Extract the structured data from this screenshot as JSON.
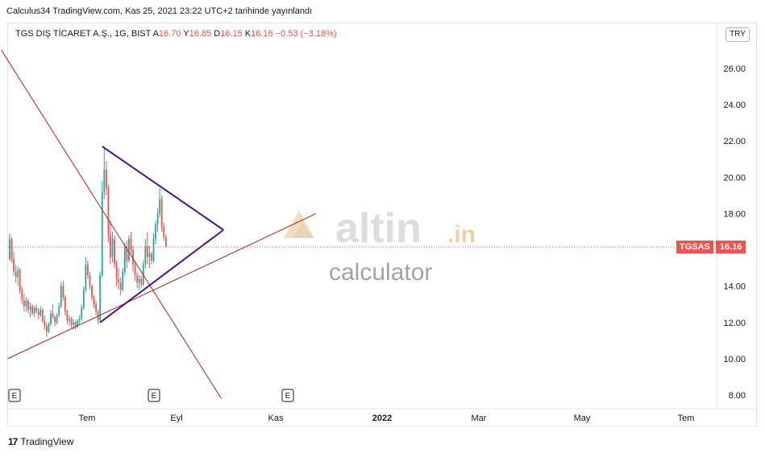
{
  "header": {
    "published": "Calculus34 TradingView.com, Kas 25, 2021 23:22 UTC+2 tarihinde yayınlandı"
  },
  "legend": {
    "symbol": "TGS DIŞ TİCARET A.Ş., 1G, BIST",
    "o_label": "A",
    "o_value": "16.70",
    "h_label": "Y",
    "h_value": "16.85",
    "l_label": "D",
    "l_value": "16.15",
    "c_label": "K",
    "c_value": "16.16",
    "change": "−0.53 (−3.18%)"
  },
  "currency_button": "TRY",
  "price_tag": {
    "symbol": "TGSAS",
    "price": "16.16"
  },
  "watermark": {
    "brand": "altin",
    "tld": ".in",
    "sub": "calculator"
  },
  "footer": {
    "logo": "17",
    "name": "TradingView"
  },
  "colors": {
    "up": "#26a69a",
    "down": "#ef5350",
    "trend_red": "#b22222",
    "triangle": "#4a148c"
  },
  "chart_data": {
    "type": "candlestick",
    "y_ticks": [
      "8.00",
      "10.00",
      "12.00",
      "14.00",
      "16.00",
      "18.00",
      "20.00",
      "22.00",
      "24.00",
      "26.00"
    ],
    "ylim": [
      7.5,
      27
    ],
    "x_ticks": [
      "Tem",
      "Eyl",
      "Kas",
      "2022",
      "Mar",
      "May",
      "Tem"
    ],
    "event_markers": [
      "E",
      "E",
      "E"
    ],
    "last_price": 16.16,
    "series": [
      {
        "name": "TGSAS",
        "values": [
          [
            15.5,
            16.9,
            15.4,
            16.6
          ],
          [
            16.6,
            16.7,
            15.3,
            15.5
          ],
          [
            15.5,
            15.9,
            14.6,
            14.8
          ],
          [
            14.8,
            15.2,
            14.2,
            14.5
          ],
          [
            14.5,
            15.1,
            14.0,
            14.9
          ],
          [
            14.9,
            15.0,
            13.6,
            13.8
          ],
          [
            13.8,
            14.0,
            13.0,
            13.2
          ],
          [
            13.2,
            13.6,
            12.6,
            12.9
          ],
          [
            12.9,
            13.4,
            12.6,
            13.2
          ],
          [
            13.2,
            13.3,
            12.5,
            12.7
          ],
          [
            12.7,
            13.1,
            12.3,
            12.9
          ],
          [
            12.9,
            13.0,
            12.4,
            12.5
          ],
          [
            12.5,
            12.9,
            12.3,
            12.8
          ],
          [
            12.8,
            13.0,
            12.5,
            12.6
          ],
          [
            12.6,
            12.8,
            12.2,
            12.4
          ],
          [
            12.4,
            12.9,
            12.3,
            12.7
          ],
          [
            12.7,
            12.8,
            12.0,
            12.1
          ],
          [
            12.1,
            12.4,
            11.6,
            11.8
          ],
          [
            11.8,
            12.0,
            11.2,
            11.5
          ],
          [
            11.5,
            12.0,
            11.4,
            11.9
          ],
          [
            11.9,
            12.7,
            11.8,
            12.5
          ],
          [
            12.5,
            13.0,
            12.2,
            12.3
          ],
          [
            12.3,
            12.4,
            11.8,
            12.0
          ],
          [
            12.0,
            12.5,
            11.9,
            12.4
          ],
          [
            12.4,
            13.1,
            12.3,
            12.9
          ],
          [
            12.9,
            14.2,
            12.8,
            14.0
          ],
          [
            14.0,
            14.3,
            13.2,
            13.4
          ],
          [
            13.4,
            13.5,
            12.4,
            12.6
          ],
          [
            12.6,
            12.7,
            11.9,
            12.1
          ],
          [
            12.1,
            12.4,
            11.8,
            12.2
          ],
          [
            12.2,
            12.3,
            11.7,
            11.9
          ],
          [
            11.9,
            12.2,
            11.6,
            12.0
          ],
          [
            12.0,
            12.1,
            11.6,
            11.8
          ],
          [
            11.8,
            12.2,
            11.7,
            12.1
          ],
          [
            12.1,
            12.4,
            11.9,
            12.2
          ],
          [
            12.2,
            13.0,
            12.1,
            12.8
          ],
          [
            12.8,
            14.0,
            12.7,
            13.8
          ],
          [
            13.8,
            15.6,
            13.7,
            15.2
          ],
          [
            15.2,
            15.4,
            14.4,
            14.6
          ],
          [
            14.6,
            14.8,
            13.8,
            14.0
          ],
          [
            14.0,
            14.1,
            13.2,
            13.4
          ],
          [
            13.4,
            13.5,
            12.8,
            13.0
          ],
          [
            13.0,
            13.2,
            12.4,
            12.6
          ],
          [
            12.6,
            12.7,
            11.9,
            12.1
          ],
          [
            12.1,
            14.8,
            12.0,
            14.6
          ],
          [
            14.6,
            19.8,
            14.5,
            19.2
          ],
          [
            19.2,
            21.6,
            18.8,
            20.4
          ],
          [
            20.4,
            20.9,
            19.0,
            19.4
          ],
          [
            19.4,
            19.6,
            16.4,
            16.8
          ],
          [
            16.8,
            17.6,
            15.2,
            15.6
          ],
          [
            15.6,
            17.0,
            15.3,
            16.6
          ],
          [
            16.6,
            16.8,
            15.0,
            15.2
          ],
          [
            15.2,
            15.4,
            14.0,
            14.4
          ],
          [
            14.4,
            15.0,
            13.8,
            14.2
          ],
          [
            14.2,
            14.5,
            13.5,
            13.8
          ],
          [
            13.8,
            15.0,
            13.7,
            14.8
          ],
          [
            14.8,
            16.4,
            14.6,
            16.2
          ],
          [
            16.2,
            16.5,
            15.0,
            15.4
          ],
          [
            15.4,
            16.8,
            15.3,
            16.6
          ],
          [
            16.6,
            17.0,
            15.8,
            16.0
          ],
          [
            16.0,
            16.2,
            14.8,
            15.2
          ],
          [
            15.2,
            15.4,
            14.3,
            14.6
          ],
          [
            14.6,
            14.8,
            13.9,
            14.2
          ],
          [
            14.2,
            14.6,
            13.8,
            14.4
          ],
          [
            14.4,
            14.6,
            13.9,
            14.1
          ],
          [
            14.1,
            15.4,
            14.0,
            15.2
          ],
          [
            15.2,
            16.6,
            15.0,
            16.2
          ],
          [
            16.2,
            17.0,
            15.2,
            15.6
          ],
          [
            15.6,
            16.2,
            15.0,
            15.8
          ],
          [
            15.8,
            15.9,
            15.2,
            15.4
          ],
          [
            15.4,
            16.9,
            15.3,
            16.6
          ],
          [
            16.6,
            17.6,
            16.3,
            17.4
          ],
          [
            17.4,
            18.3,
            17.0,
            18.0
          ],
          [
            18.0,
            19.4,
            17.8,
            18.8
          ],
          [
            18.8,
            19.0,
            17.0,
            17.3
          ],
          [
            17.3,
            17.5,
            16.5,
            16.7
          ],
          [
            16.7,
            16.85,
            16.15,
            16.16
          ]
        ]
      }
    ],
    "lines": [
      {
        "name": "long-downtrend",
        "color": "#b22222",
        "from": [
          -4,
          27.0
        ],
        "to": [
          103,
          7.8
        ]
      },
      {
        "name": "long-uptrend",
        "color": "#b22222",
        "from": [
          -1,
          10.0
        ],
        "to": [
          149,
          18.0
        ]
      },
      {
        "name": "triangle-upper",
        "color": "#4a148c",
        "from": [
          45,
          21.7
        ],
        "to": [
          104,
          17.1
        ]
      },
      {
        "name": "triangle-lower",
        "color": "#4a148c",
        "from": [
          44,
          12.0
        ],
        "to": [
          104,
          17.1
        ]
      }
    ]
  }
}
